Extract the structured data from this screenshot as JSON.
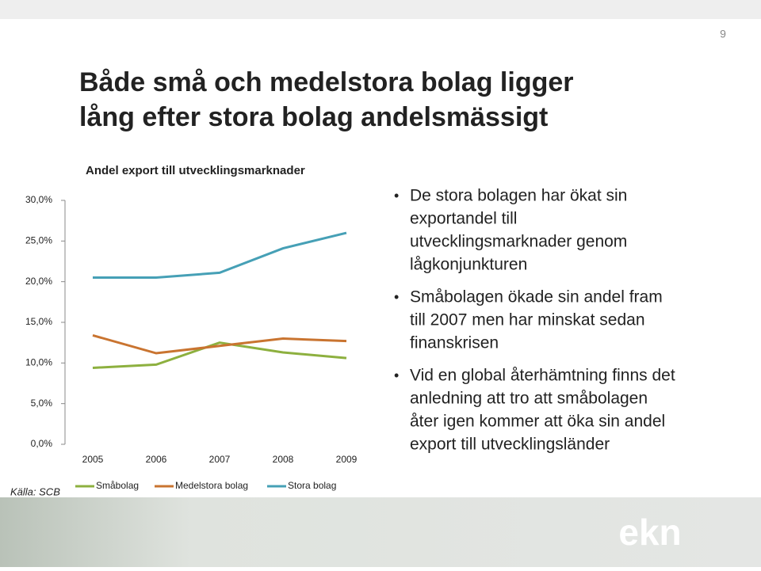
{
  "page_number": "9",
  "title": [
    "Både små och medelstora bolag ligger",
    "lång efter stora bolag andelsmässigt"
  ],
  "bullets": [
    [
      "De stora bolagen har ökat sin",
      "exportandel till",
      "utvecklingsmarknader genom",
      "lågkonjunkturen"
    ],
    [
      "Småbolagen ökade sin andel fram",
      "till 2007 men har minskat sedan",
      "finanskrisen"
    ],
    [
      "Vid en global återhämtning finns det",
      "anledning att tro att småbolagen",
      "åter igen kommer att öka sin andel",
      "export till utvecklingsländer"
    ]
  ],
  "source": "Källa: SCB",
  "logo": "ekn",
  "chart_data": {
    "type": "line",
    "title": "Andel export till utvecklingsmarknader",
    "categories": [
      "2005",
      "2006",
      "2007",
      "2008",
      "2009"
    ],
    "series": [
      {
        "name": "Småbolag",
        "color": "#8db03f",
        "values": [
          9.4,
          9.8,
          12.5,
          11.3,
          10.6
        ]
      },
      {
        "name": "Medelstora bolag",
        "color": "#c97430",
        "values": [
          13.4,
          11.2,
          12.1,
          13.0,
          12.7
        ]
      },
      {
        "name": "Stora bolag",
        "color": "#46a0b6",
        "values": [
          20.5,
          20.5,
          21.1,
          24.1,
          26.0
        ]
      }
    ],
    "ylim": [
      0,
      30
    ],
    "yticks": [
      {
        "value": 0,
        "label": "0,0%"
      },
      {
        "value": 5,
        "label": "5,0%"
      },
      {
        "value": 10,
        "label": "10,0%"
      },
      {
        "value": 15,
        "label": "15,0%"
      },
      {
        "value": 20,
        "label": "20,0%"
      },
      {
        "value": 25,
        "label": "25,0%"
      },
      {
        "value": 30,
        "label": "30,0%"
      }
    ],
    "grid": false,
    "legend": "bottom"
  }
}
